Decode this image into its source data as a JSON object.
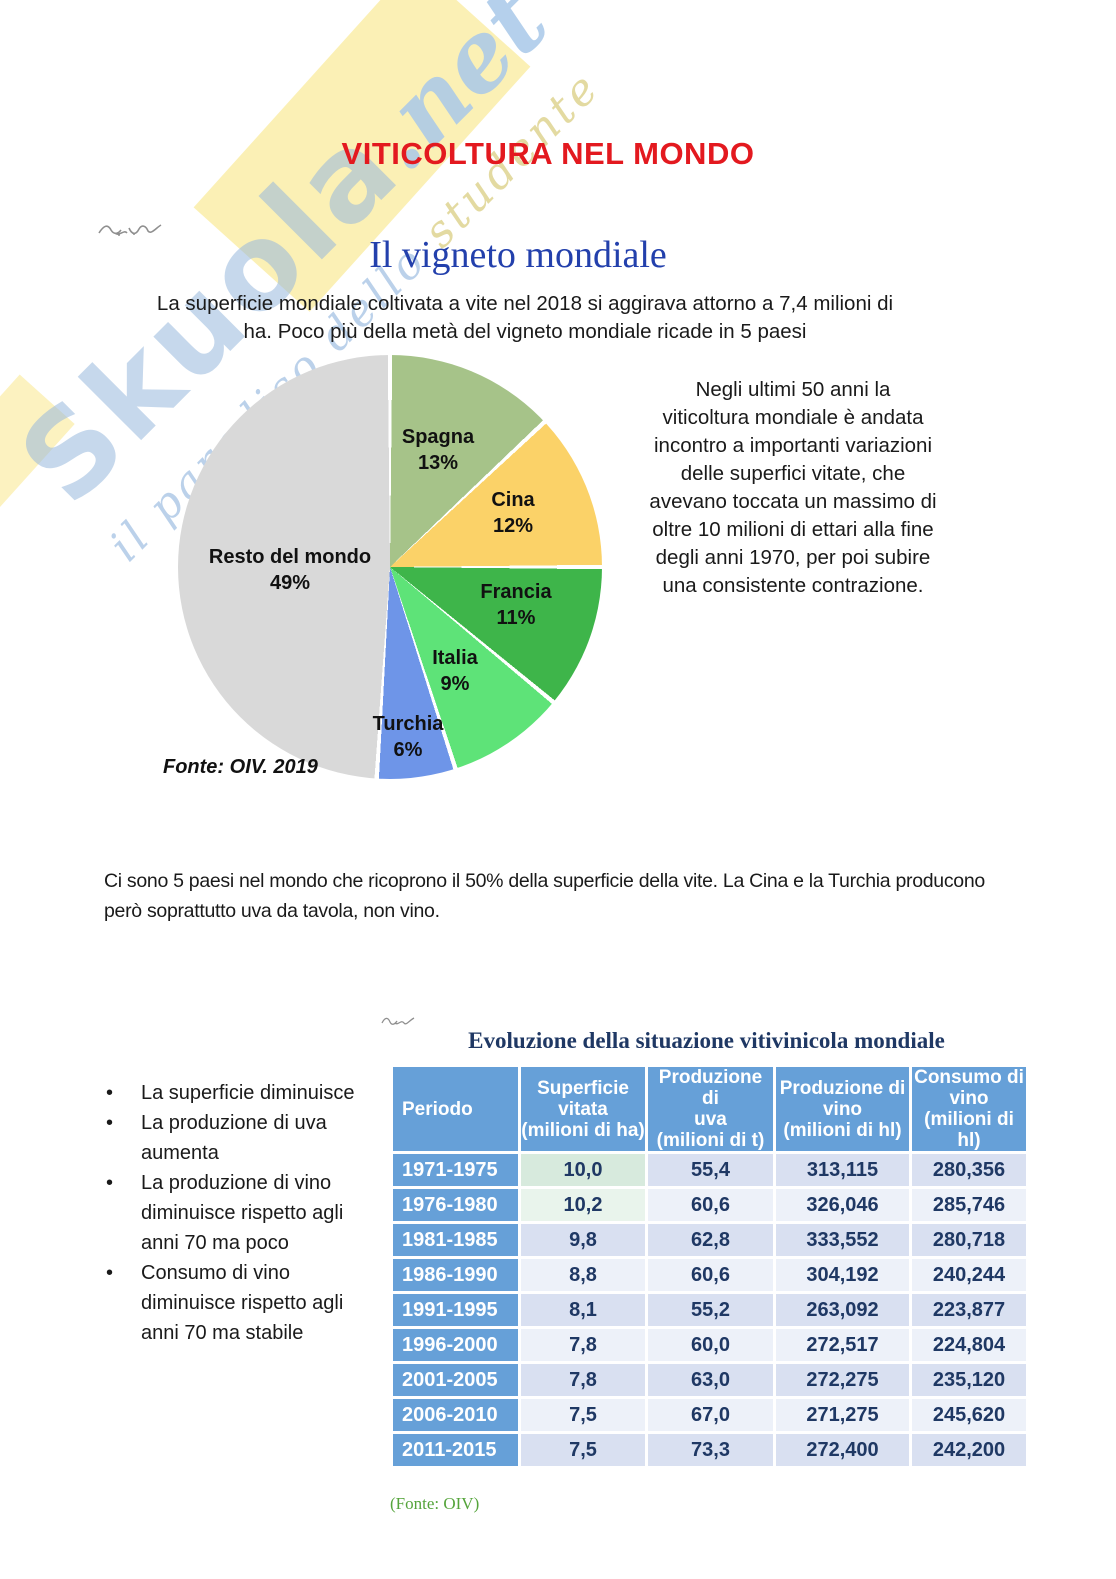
{
  "watermark": {
    "brand": "Skuola",
    "suffix": ".net",
    "tagline_blue": "il paradiso dello ",
    "tagline_yellow": "studente"
  },
  "header": {
    "title": "VITICOLTURA NEL MONDO"
  },
  "vineyard_section": {
    "heading": "Il vigneto mondiale",
    "intro": "La superficie mondiale coltivata a vite nel 2018 si aggirava attorno a 7,4 milioni di\nha. Poco più della metà del vigneto mondiale ricade in  5 paesi",
    "side_paragraph": "Negli ultimi 50 anni la\nviticoltura mondiale è andata\nincontro a importanti variazioni\ndelle superfici vitate, che\navevano toccata un massimo di\noltre 10 milioni di ettari alla fine\ndegli anni 1970, per poi subire\nuna consistente contrazione.",
    "pie_source": "Fonte: OIV. 2019"
  },
  "mid_paragraph": "Ci sono 5 paesi nel mondo che ricoprono il 50% della superficie della vite. La Cina e la Turchia producono\nperò soprattutto uva da tavola, non vino.",
  "bullets": [
    "La superficie diminuisce",
    "La produzione di uva\naumenta",
    "La produzione di vino\ndiminuisce rispetto agli\nanni 70 ma poco",
    "Consumo di vino\ndiminuisce rispetto agli\nanni 70 ma stabile"
  ],
  "table_section": {
    "title": "Evoluzione della situazione vitivinicola mondiale",
    "source": "(Fonte: OIV)"
  },
  "colors": {
    "title_red": "#E3191F",
    "heading_blue": "#2340AC",
    "table_header_blue": "#66A0D8",
    "table_text_navy": "#1F3864",
    "source_green": "#55A43B"
  },
  "chart_data": [
    {
      "type": "pie",
      "title": "Il vigneto mondiale",
      "source": "Fonte: OIV. 2019",
      "start_angle_deg": 0,
      "direction": "clockwise",
      "slices": [
        {
          "label": "Spagna",
          "value": 13,
          "color": "#A6C389"
        },
        {
          "label": "Cina",
          "value": 12,
          "color": "#FBD268"
        },
        {
          "label": "Francia",
          "value": 11,
          "color": "#3EB54A"
        },
        {
          "label": "Italia",
          "value": 9,
          "color": "#5EE378"
        },
        {
          "label": "Turchia",
          "value": 6,
          "color": "#6E95E8"
        },
        {
          "label": "Resto del mondo",
          "value": 49,
          "color": "#D9D9D9"
        }
      ]
    },
    {
      "type": "table",
      "title": "Evoluzione della situazione vitivinicola mondiale",
      "source": "(Fonte: OIV)",
      "columns": [
        "Periodo",
        "Superficie\nvitata\n(milioni di ha)",
        "Produzione di\nuva\n(milioni di t)",
        "Produzione di\nvino\n(milioni di hl)",
        "Consumo di\nvino\n(milioni di hl)"
      ],
      "rows": [
        [
          "1971-1975",
          "10,0",
          "55,4",
          "313,115",
          "280,356"
        ],
        [
          "1976-1980",
          "10,2",
          "60,6",
          "326,046",
          "285,746"
        ],
        [
          "1981-1985",
          "9,8",
          "62,8",
          "333,552",
          "280,718"
        ],
        [
          "1986-1990",
          "8,8",
          "60,6",
          "304,192",
          "240,244"
        ],
        [
          "1991-1995",
          "8,1",
          "55,2",
          "263,092",
          "223,877"
        ],
        [
          "1996-2000",
          "7,8",
          "60,0",
          "272,517",
          "224,804"
        ],
        [
          "2001-2005",
          "7,8",
          "63,0",
          "272,275",
          "235,120"
        ],
        [
          "2006-2010",
          "7,5",
          "67,0",
          "271,275",
          "245,620"
        ],
        [
          "2011-2015",
          "7,5",
          "73,3",
          "272,400",
          "242,200"
        ]
      ]
    }
  ]
}
